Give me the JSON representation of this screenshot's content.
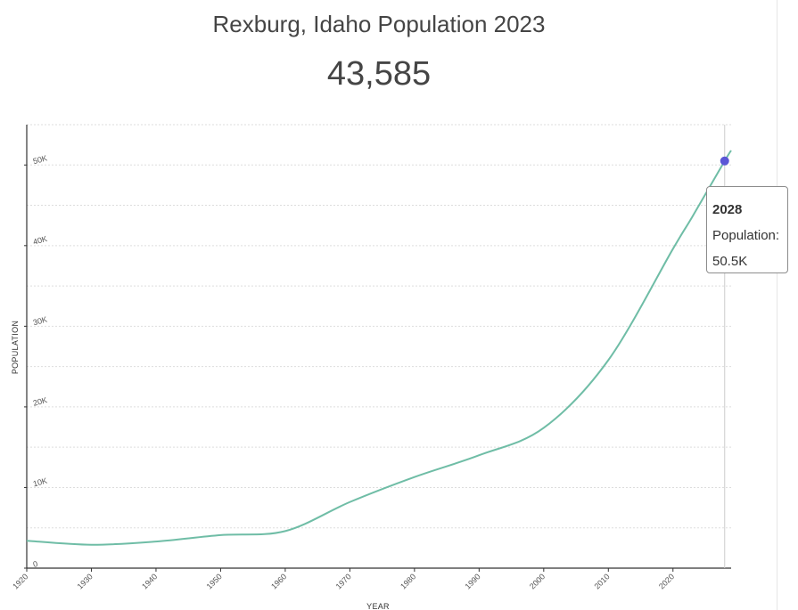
{
  "header": {
    "title": "Rexburg, Idaho Population 2023",
    "population": "43,585"
  },
  "tooltip": {
    "year": "2028",
    "label": "Population:",
    "value": "50.5K"
  },
  "colors": {
    "line": "#6fbda6",
    "highlight": "#5b57d6",
    "axis": "#333333",
    "grid": "#dddddd"
  },
  "chart_data": {
    "type": "line",
    "title": "Rexburg, Idaho Population 2023",
    "xlabel": "YEAR",
    "ylabel": "POPULATION",
    "xlim": [
      1920,
      2029
    ],
    "ylim": [
      0,
      55000
    ],
    "x_ticks": [
      1920,
      1930,
      1940,
      1950,
      1960,
      1970,
      1980,
      1990,
      2000,
      2010,
      2020
    ],
    "x_tick_labels": [
      "1920",
      "1930",
      "1940",
      "1950",
      "1960",
      "1970",
      "1980",
      "1990",
      "2000",
      "2010",
      "2020"
    ],
    "y_ticks": [
      0,
      10000,
      20000,
      30000,
      40000,
      50000
    ],
    "y_tick_labels": [
      "0",
      "10K",
      "20K",
      "30K",
      "40K",
      "50K"
    ],
    "grid": true,
    "highlight": {
      "x": 2028,
      "y": 50500
    },
    "series": [
      {
        "values": [
          [
            1920,
            3400
          ],
          [
            1930,
            2900
          ],
          [
            1940,
            3300
          ],
          [
            1950,
            4100
          ],
          [
            1960,
            4600
          ],
          [
            1970,
            8200
          ],
          [
            1980,
            11300
          ],
          [
            1990,
            14000
          ],
          [
            2000,
            17400
          ],
          [
            2010,
            25800
          ],
          [
            2020,
            39600
          ],
          [
            2023,
            43585
          ],
          [
            2028,
            50500
          ],
          [
            2029,
            51800
          ]
        ]
      }
    ]
  }
}
